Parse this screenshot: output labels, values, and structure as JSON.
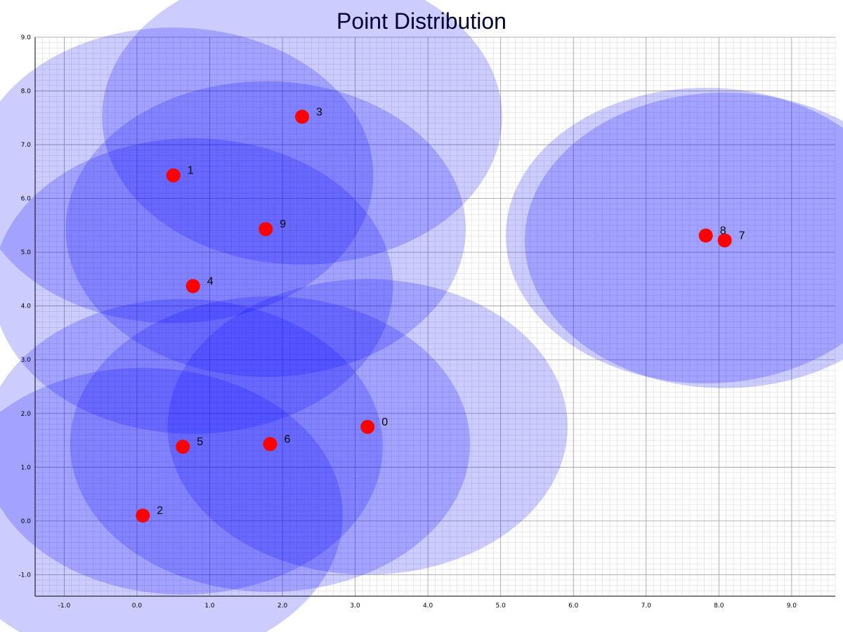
{
  "chart_data": {
    "type": "scatter",
    "title": "Point Distribution",
    "xlabel": "",
    "ylabel": "",
    "xlim": [
      -1.4,
      9.6
    ],
    "ylim": [
      -1.4,
      9.0
    ],
    "grid": "on",
    "x_ticks": [
      -1,
      0,
      1,
      2,
      3,
      4,
      5,
      6,
      7,
      8,
      9
    ],
    "y_ticks": [
      -1,
      0,
      1,
      2,
      3,
      4,
      5,
      6,
      7,
      8,
      9
    ],
    "x_tick_labels": [
      "-1.0",
      "0.0",
      "1.0",
      "2.0",
      "3.0",
      "4.0",
      "5.0",
      "6.0",
      "7.0",
      "8.0",
      "9.0"
    ],
    "y_tick_labels": [
      "-1.0",
      "0.0",
      "1.0",
      "2.0",
      "3.0",
      "4.0",
      "5.0",
      "6.0",
      "7.0",
      "8.0",
      "9.0"
    ],
    "points": [
      {
        "label": "0",
        "x": 3.17,
        "y": 1.75,
        "radius": 2.75
      },
      {
        "label": "1",
        "x": 0.5,
        "y": 6.43,
        "radius": 2.75
      },
      {
        "label": "2",
        "x": 0.08,
        "y": 0.1,
        "radius": 2.75
      },
      {
        "label": "3",
        "x": 2.27,
        "y": 7.52,
        "radius": 2.75
      },
      {
        "label": "4",
        "x": 0.77,
        "y": 4.37,
        "radius": 2.75
      },
      {
        "label": "5",
        "x": 0.63,
        "y": 1.38,
        "radius": 2.75
      },
      {
        "label": "6",
        "x": 1.83,
        "y": 1.43,
        "radius": 2.75
      },
      {
        "label": "7",
        "x": 8.08,
        "y": 5.22,
        "radius": 2.75
      },
      {
        "label": "8",
        "x": 7.82,
        "y": 5.31,
        "radius": 2.75
      },
      {
        "label": "9",
        "x": 1.77,
        "y": 5.43,
        "radius": 2.75
      }
    ],
    "colors": {
      "point": "#ff0000",
      "circle": "#0000ff",
      "title": "#000033",
      "axis": "#000000",
      "grid_major": "#999999",
      "grid_minor": "#dddddd"
    }
  }
}
